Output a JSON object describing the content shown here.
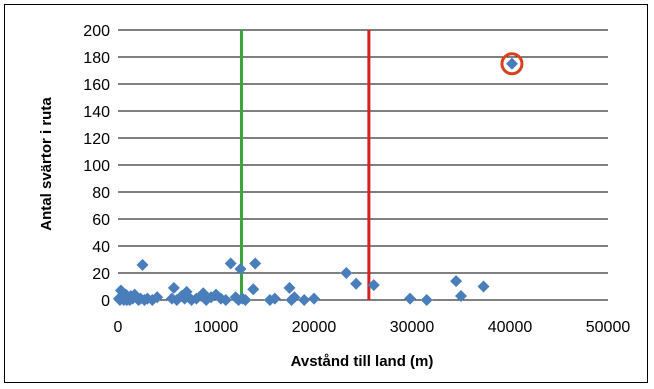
{
  "chart_data": {
    "type": "scatter",
    "title": "",
    "xlabel": "Avstånd till land (m)",
    "ylabel": "Antal svärtor i ruta",
    "xlim": [
      0,
      50000
    ],
    "ylim": [
      0,
      200
    ],
    "x_ticks": [
      "0",
      "10000",
      "20000",
      "30000",
      "40000",
      "50000"
    ],
    "y_ticks": [
      "0",
      "20",
      "40",
      "60",
      "80",
      "100",
      "120",
      "140",
      "160",
      "180",
      "200"
    ],
    "grid": "horizontal",
    "legend": "none",
    "marker_color": "#4a7ebb",
    "series": [
      {
        "x": [
          100,
          200,
          300,
          400,
          500,
          600,
          700,
          800,
          900,
          1000,
          1200,
          1300,
          1500,
          1700,
          1900,
          2100,
          2300,
          2500,
          2700,
          3000,
          3500,
          4000,
          5500,
          5700,
          6000,
          6500,
          6800,
          7000,
          7200,
          7500,
          8000,
          8500,
          8700,
          9000,
          9500,
          10000,
          10500,
          11000,
          11500,
          12000,
          12300,
          12500,
          12700,
          13000,
          13800,
          14000,
          15500,
          16000,
          17500,
          17700,
          18000,
          19000,
          20000,
          23300,
          24300,
          26100,
          29800,
          31500,
          34500,
          35000,
          37300,
          40200
        ],
        "y": [
          1,
          0,
          7,
          2,
          3,
          0,
          1,
          4,
          0,
          2,
          0,
          3,
          1,
          4,
          2,
          0,
          1,
          26,
          0,
          1,
          0,
          2,
          1,
          9,
          0,
          3,
          1,
          6,
          2,
          0,
          1,
          3,
          5,
          0,
          2,
          4,
          1,
          0,
          27,
          2,
          0,
          23,
          1,
          0,
          8,
          27,
          0,
          1,
          9,
          0,
          2,
          0,
          1,
          20,
          12,
          11,
          1,
          0,
          14,
          3,
          10,
          175
        ]
      }
    ],
    "reference_lines": [
      {
        "x": 12600,
        "color": "#3aa53a"
      },
      {
        "x": 25600,
        "color": "#d62020"
      }
    ],
    "highlight": {
      "x": 40200,
      "y": 175,
      "color": "#d9411e"
    }
  }
}
